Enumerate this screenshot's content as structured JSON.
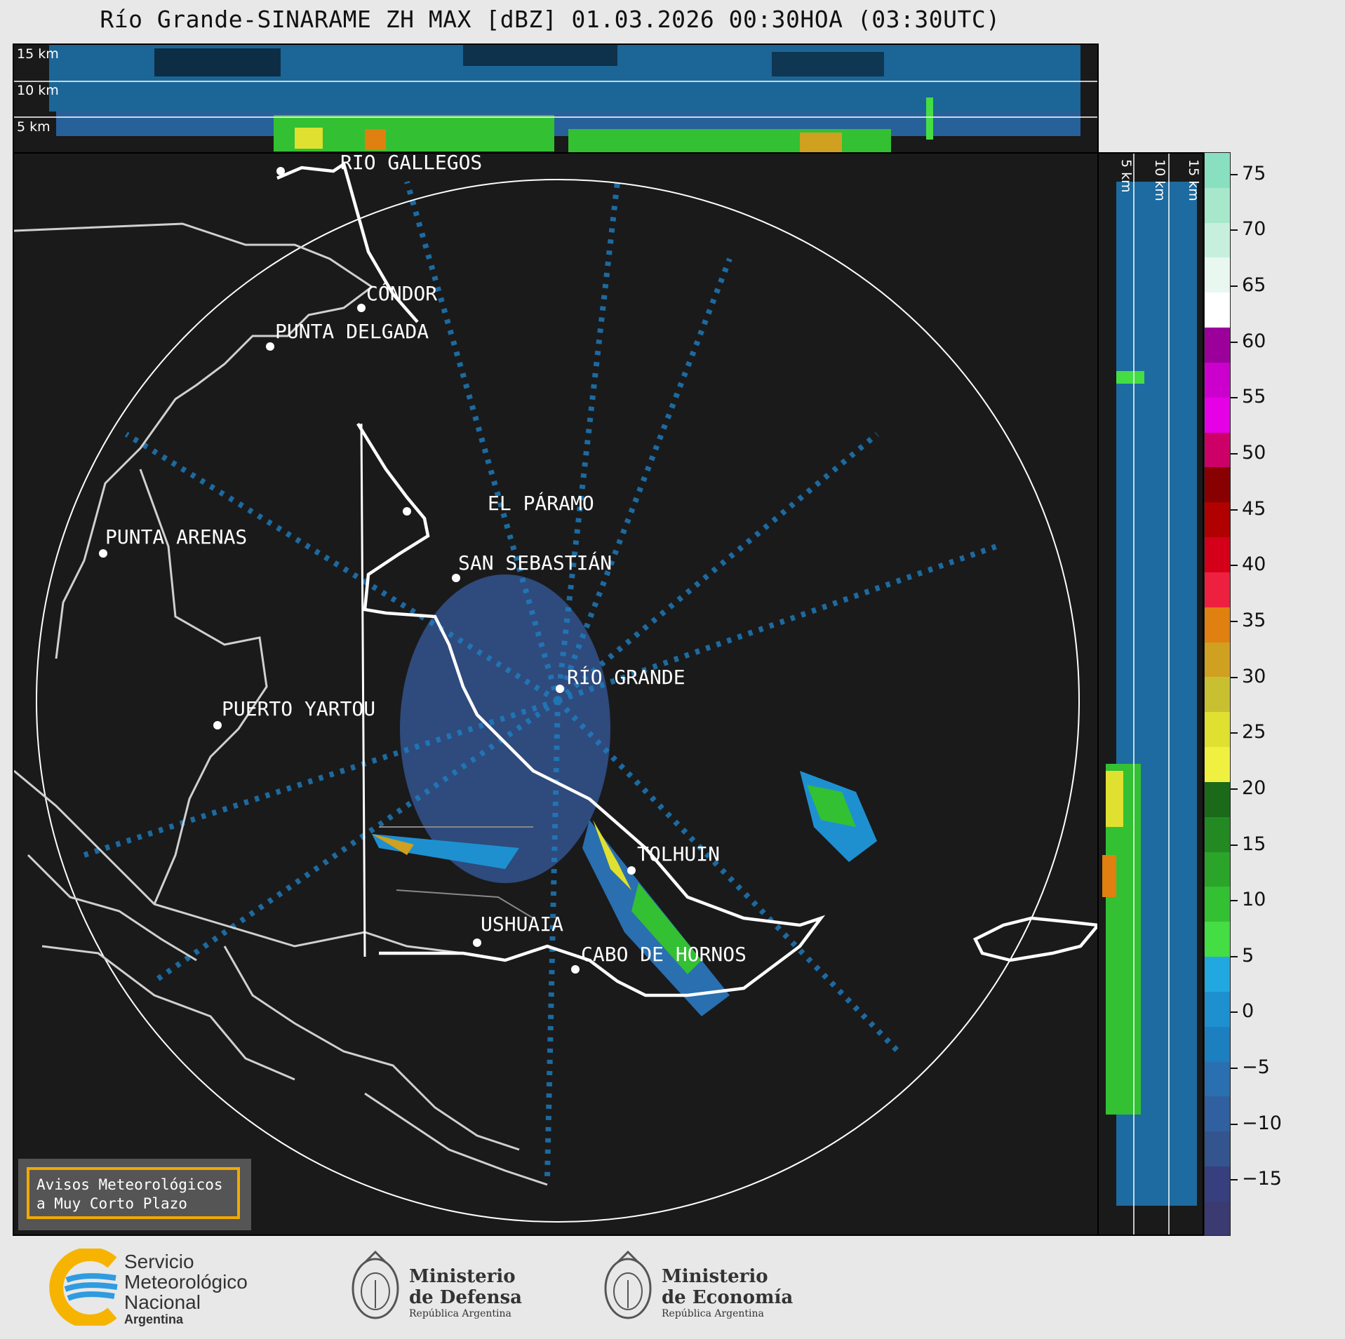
{
  "title": "Río Grande-SINARAME ZH MAX [dBZ] 01.03.2026 00:30HOA (03:30UTC)",
  "height_labels": {
    "top": [
      "15 km",
      "10 km",
      "5 km"
    ],
    "side": [
      "5 km",
      "10 km",
      "15 km"
    ]
  },
  "cities": {
    "rio_gallegos": "RÍO GALLEGOS",
    "condor": "CÓNDOR",
    "punta_delgada": "PUNTA DELGADA",
    "el_paramo": "EL PÁRAMO",
    "punta_arenas": "PUNTA ARENAS",
    "san_sebastian": "SAN SEBASTIÁN",
    "rio_grande": "RÍO GRANDE",
    "puerto_yartou": "PUERTO YARTOU",
    "tolhuin": "TOLHUIN",
    "ushuaia": "USHUAIA",
    "cabo_de_hornos": "CABO DE HORNOS"
  },
  "colorbar": {
    "unit": "dBZ",
    "ticks": [
      "75",
      "70",
      "65",
      "60",
      "55",
      "50",
      "45",
      "40",
      "35",
      "30",
      "25",
      "20",
      "15",
      "10",
      "5",
      "0",
      "−5",
      "−10",
      "−15"
    ],
    "range": [
      -20,
      77
    ],
    "colors_top_to_bottom": [
      "#89e0c0",
      "#a7e8cd",
      "#c6f0dd",
      "#e8f8f0",
      "#ffffff",
      "#9b009b",
      "#cc00cc",
      "#e600e6",
      "#cc0066",
      "#880000",
      "#b00000",
      "#d4001a",
      "#ee2040",
      "#e08010",
      "#d0a020",
      "#c8c030",
      "#e0e030",
      "#f0f040",
      "#1a6a1a",
      "#238a23",
      "#2aa52a",
      "#33c033",
      "#44dd44",
      "#22a8e0",
      "#1e90d0",
      "#1c7fc0",
      "#2a6fb0",
      "#30609f",
      "#34548e",
      "#383f7e",
      "#3b3b72"
    ]
  },
  "notice": {
    "line1": "Avisos Meteorológicos",
    "line2": "a Muy Corto Plazo"
  },
  "logos": {
    "smn": {
      "line1": "Servicio",
      "line2": "Meteorológico",
      "line3": "Nacional",
      "line4": "Argentina",
      "color_blue": "#2f9be0",
      "color_yellow": "#f6b400"
    },
    "defensa": {
      "line1": "Ministerio",
      "line2": "de Defensa",
      "line3": "República Argentina"
    },
    "economia": {
      "line1": "Ministerio",
      "line2": "de Economía",
      "line3": "República Argentina"
    }
  }
}
